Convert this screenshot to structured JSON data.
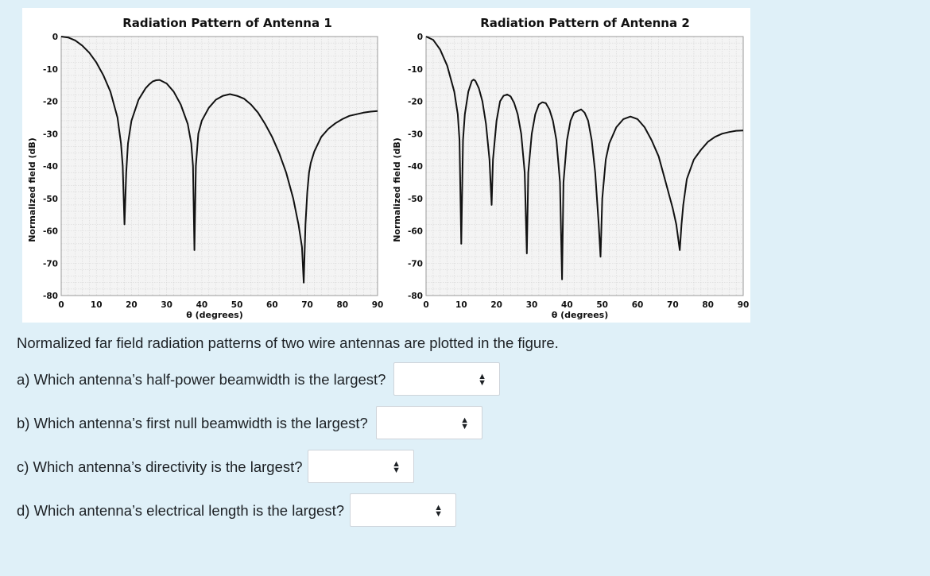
{
  "chart_data": [
    {
      "type": "line",
      "title": "Radiation Pattern of Antenna 1",
      "xlabel": "θ (degrees)",
      "ylabel": "Normalized field (dB)",
      "xlim": [
        0,
        90
      ],
      "ylim": [
        -80,
        0
      ],
      "xticks": [
        0,
        10,
        20,
        30,
        40,
        50,
        60,
        70,
        80,
        90
      ],
      "yticks": [
        0,
        -10,
        -20,
        -30,
        -40,
        -50,
        -60,
        -70,
        -80
      ],
      "grid": true,
      "x": [
        0,
        2,
        4,
        6,
        8,
        10,
        12,
        14,
        16,
        17,
        17.5,
        18,
        18.5,
        19,
        20,
        22,
        24,
        25,
        26,
        27,
        28,
        30,
        32,
        34,
        36,
        37,
        37.5,
        37.9,
        38.3,
        39,
        40,
        42,
        44,
        46,
        48,
        50,
        52,
        54,
        56,
        58,
        60,
        62,
        64,
        66,
        67.5,
        68.5,
        69,
        69.5,
        70,
        70.5,
        71,
        72,
        74,
        76,
        78,
        80,
        82,
        84,
        86,
        88,
        90
      ],
      "values": [
        0,
        -0.3,
        -1.2,
        -2.8,
        -5,
        -8,
        -12,
        -17,
        -25,
        -33,
        -40,
        -58,
        -42,
        -33,
        -26,
        -19.5,
        -16,
        -14.8,
        -13.9,
        -13.5,
        -13.4,
        -14.5,
        -17,
        -21,
        -27,
        -33,
        -40,
        -66,
        -40,
        -30,
        -26,
        -22,
        -19.5,
        -18.3,
        -17.8,
        -18.3,
        -19.2,
        -21,
        -23.5,
        -27,
        -31,
        -36,
        -42,
        -50,
        -58,
        -65,
        -76,
        -58,
        -48,
        -42,
        -39,
        -35.5,
        -31,
        -28.5,
        -26.8,
        -25.5,
        -24.5,
        -24,
        -23.5,
        -23.2,
        -23
      ]
    },
    {
      "type": "line",
      "title": "Radiation Pattern of Antenna 2",
      "xlabel": "θ (degrees)",
      "ylabel": "Normalized field (dB)",
      "xlim": [
        0,
        90
      ],
      "ylim": [
        -80,
        0
      ],
      "xticks": [
        0,
        10,
        20,
        30,
        40,
        50,
        60,
        70,
        80,
        90
      ],
      "yticks": [
        0,
        -10,
        -20,
        -30,
        -40,
        -50,
        -60,
        -70,
        -80
      ],
      "grid": true,
      "x": [
        0,
        2,
        4,
        6,
        8,
        9,
        9.5,
        10,
        10.5,
        11,
        12,
        13,
        13.5,
        14,
        15,
        16,
        17,
        18,
        18.6,
        19,
        20,
        21,
        22,
        23,
        24,
        25,
        26,
        27,
        28,
        28.6,
        29,
        30,
        31,
        32,
        33,
        34,
        35,
        36,
        37,
        38,
        38.6,
        39,
        40,
        41,
        42,
        44,
        45,
        46,
        47,
        48,
        49,
        49.5,
        50,
        51,
        52,
        54,
        56,
        58,
        60,
        62,
        64,
        66,
        68,
        70,
        71,
        72,
        72.5,
        73,
        74,
        76,
        78,
        80,
        82,
        84,
        86,
        88,
        90
      ],
      "values": [
        0,
        -1,
        -4,
        -9,
        -17,
        -24,
        -32,
        -64,
        -32,
        -24,
        -17,
        -13.7,
        -13.3,
        -13.7,
        -16,
        -20,
        -27,
        -38,
        -52,
        -38,
        -26,
        -20,
        -18.3,
        -17.9,
        -18.5,
        -20.5,
        -24,
        -30,
        -42,
        -67,
        -42,
        -30,
        -24,
        -21,
        -20.3,
        -20.6,
        -22.5,
        -26,
        -32,
        -45,
        -75,
        -45,
        -32,
        -26,
        -23.5,
        -22.5,
        -23.5,
        -26,
        -32,
        -42,
        -58,
        -68,
        -50,
        -38,
        -33,
        -28,
        -25.5,
        -24.7,
        -25.5,
        -28,
        -32,
        -37,
        -45,
        -53,
        -58,
        -66,
        -58,
        -52,
        -44,
        -38,
        -35,
        -32.5,
        -31,
        -30,
        -29.5,
        -29.1,
        -29
      ]
    }
  ],
  "questions": {
    "intro": "Normalized far field radiation patterns of two wire antennas are plotted in the figure.",
    "items": [
      {
        "label": "a) Which antenna’s half-power beamwidth is the largest?",
        "selected": ""
      },
      {
        "label": "b) Which antenna’s first null beamwidth is the largest?",
        "selected": ""
      },
      {
        "label": "c) Which antenna’s directivity is the largest?",
        "selected": ""
      },
      {
        "label": "d) Which antenna’s electrical length is the largest?",
        "selected": ""
      }
    ]
  }
}
